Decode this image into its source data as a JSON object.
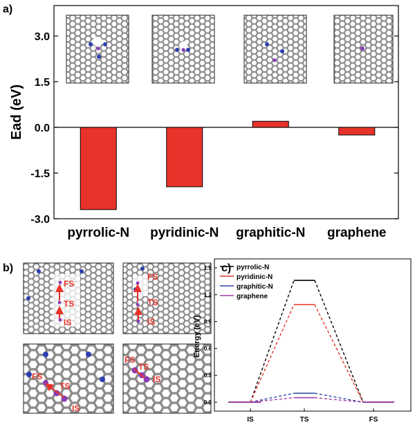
{
  "panel_labels": {
    "a": "a)",
    "b": "b)",
    "c": "c)"
  },
  "colors": {
    "bar": "#e8332a",
    "pyrrolic": "#000000",
    "pyridinic": "#e8332a",
    "graphitic": "#2a46a8",
    "graphene": "#a23ca8",
    "annot": "#e8332a",
    "atom_c": "#b4b4b4",
    "atom_n": "#2d3fb0",
    "atom_x": "#8a3cb5"
  },
  "chart_data": [
    {
      "id": "a",
      "type": "bar",
      "title": "",
      "ylabel": "Ead (eV)",
      "xlabel": "",
      "categories": [
        "pyrrolic-N",
        "pyridinic-N",
        "graphitic-N",
        "graphene"
      ],
      "values": [
        -2.7,
        -1.95,
        0.2,
        -0.25
      ],
      "ylim": [
        -3.0,
        4.0
      ],
      "yticks": [
        -3.0,
        -1.5,
        0.0,
        1.5,
        3.0
      ],
      "ytick_labels": [
        "-3.0",
        "-1.5",
        "0.0",
        "1.5",
        "3.0"
      ],
      "zero_line": true
    },
    {
      "id": "c",
      "type": "line",
      "title": "",
      "xlabel": "",
      "ylabel": "Energy (eV)",
      "categories": [
        "IS",
        "TS",
        "FS"
      ],
      "ylim": [
        -0.1,
        1.6
      ],
      "yticks": [
        0.0,
        0.3,
        0.6,
        0.9,
        1.2,
        1.5
      ],
      "ytick_labels": [
        "0.0",
        "0.3",
        "0.6",
        "0.9",
        "1.2",
        "1.5"
      ],
      "legend_position": "top-left",
      "series": [
        {
          "name": "pyrrolic-N",
          "values": [
            0.0,
            1.36,
            0.0
          ]
        },
        {
          "name": "pyridinic-N",
          "values": [
            0.0,
            1.09,
            0.0
          ]
        },
        {
          "name": "graphitic-N",
          "values": [
            0.0,
            0.1,
            0.0
          ]
        },
        {
          "name": "graphene",
          "values": [
            0.0,
            0.05,
            0.0
          ]
        }
      ]
    }
  ],
  "panel_b": {
    "top_left": {
      "labels": [
        "FS",
        "TS",
        "IS"
      ]
    },
    "top_right": {
      "labels": [
        "FS",
        "TS",
        "IS"
      ]
    },
    "bottom_left": {
      "labels": [
        "FS",
        "TS",
        "IS"
      ]
    },
    "bottom_right": {
      "labels": [
        "FS",
        "TS",
        "IS"
      ]
    }
  }
}
